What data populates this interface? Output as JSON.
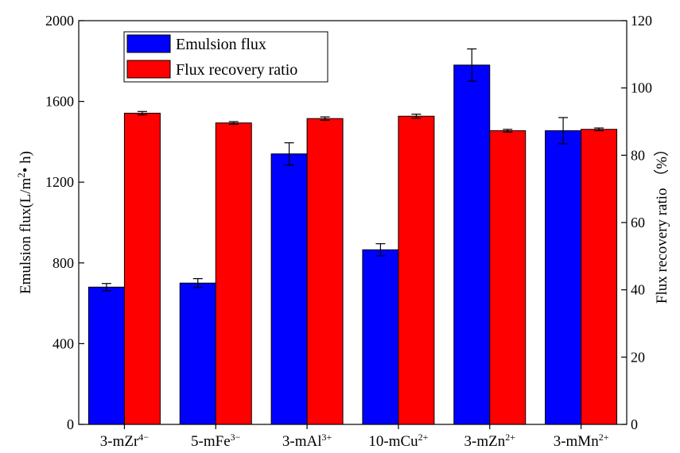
{
  "chart_data": {
    "type": "bar",
    "categories": [
      "3-mZr",
      "5-mFe",
      "3-mAl",
      "10-mCu",
      "3-mZn",
      "3-mMn"
    ],
    "category_superscripts": [
      "4−",
      "3−",
      "3+",
      "2+",
      "2+",
      "2+"
    ],
    "series": [
      {
        "name": "Emulsion flux",
        "axis": "left",
        "color": "#0000ff",
        "values": [
          680,
          700,
          1340,
          865,
          1780,
          1455
        ],
        "errors": [
          18,
          22,
          55,
          30,
          80,
          65
        ]
      },
      {
        "name": "Flux recovery ratio",
        "axis": "right",
        "color": "#ff0000",
        "values": [
          92.5,
          89.6,
          90.9,
          91.6,
          87.3,
          87.7
        ],
        "errors": [
          0.5,
          0.4,
          0.5,
          0.6,
          0.4,
          0.4
        ]
      }
    ],
    "ylabel": "Emulsion flux(L/m",
    "ylabel_sup": "2",
    "ylabel_tail": "• h)",
    "ylabel_right": "Flux recovery ratio （%）",
    "ylim": [
      0,
      2000
    ],
    "yticks": [
      "0",
      "400",
      "800",
      "1200",
      "1600",
      "2000"
    ],
    "ylim_right": [
      0,
      120
    ],
    "yticks_right": [
      "0",
      "20",
      "40",
      "60",
      "80",
      "100",
      "120"
    ],
    "legend_position": "top-left",
    "grid": false
  }
}
